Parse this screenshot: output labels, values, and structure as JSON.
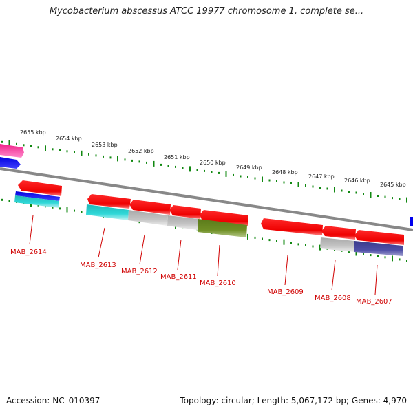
{
  "title": "Mycobacterium abscessus ATCC 19977 chromosome 1, complete se...",
  "accession": "Accession: NC_010397",
  "summary": "Topology: circular; Length: 5,067,172 bp; Genes: 4,970",
  "ticks": [
    "2655 kbp",
    "2654 kbp",
    "2653 kbp",
    "2652 kbp",
    "2651 kbp",
    "2650 kbp",
    "2649 kbp",
    "2648 kbp",
    "2647 kbp",
    "2646 kbp",
    "2645 kbp"
  ],
  "genes": [
    "MAB_2614",
    "MAB_2613",
    "MAB_2612",
    "MAB_2611",
    "MAB_2610",
    "MAB_2609",
    "MAB_2608",
    "MAB_2607"
  ],
  "colors": {
    "gene_arrow": "#ff0000",
    "tick": "#118811",
    "backbone": "#888888",
    "label": "#d00000",
    "cyan": "#22cccc",
    "gray": "#bbbbbb",
    "olive": "#6b8e23",
    "slate": "#4a4aa0",
    "blue": "#0000ee",
    "magenta": "#ee3399"
  }
}
